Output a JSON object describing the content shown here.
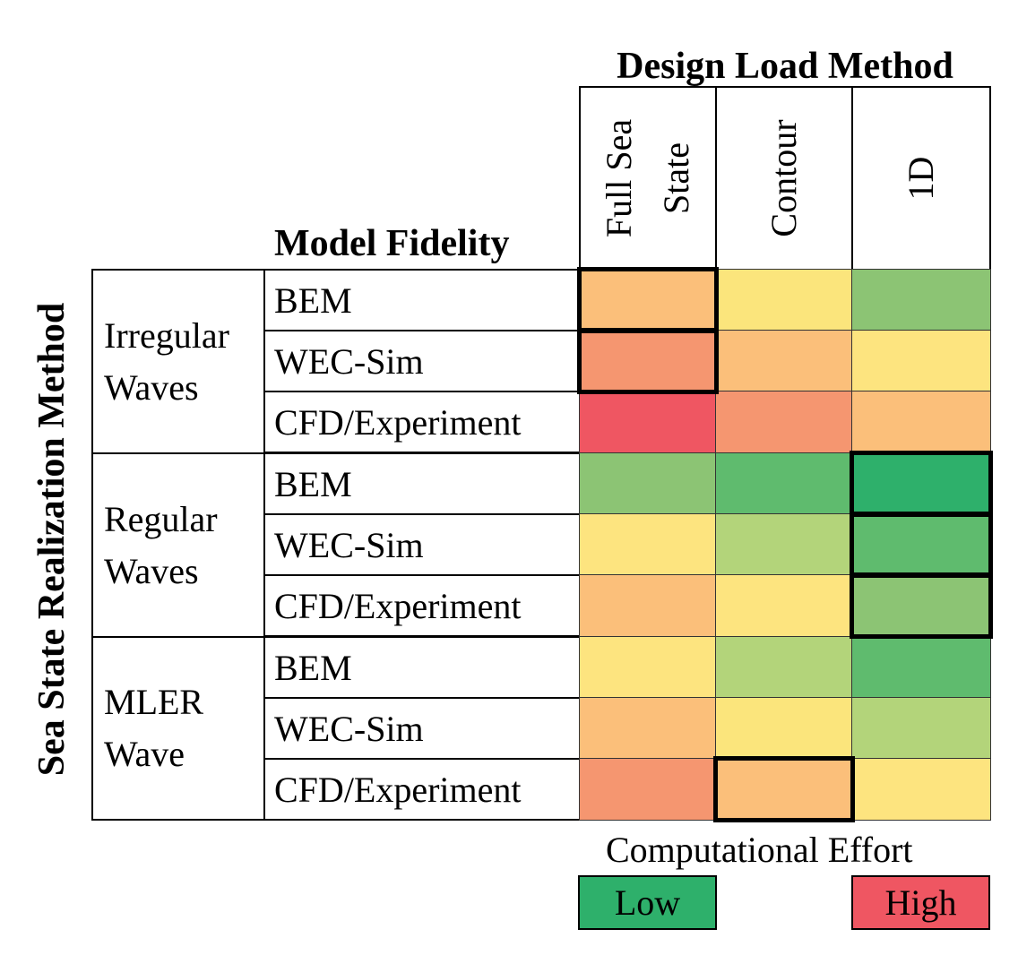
{
  "titles": {
    "design_load_method": "Design Load Method",
    "model_fidelity": "Model Fidelity",
    "sea_state_method": "Sea State Realization Method"
  },
  "columns": [
    {
      "label": "Full Sea State"
    },
    {
      "label": "Contour"
    },
    {
      "label": "1D"
    }
  ],
  "groups": [
    {
      "label": "Irregular Waves"
    },
    {
      "label": "Regular Waves"
    },
    {
      "label": "MLER Wave"
    }
  ],
  "rows": [
    {
      "group": 0,
      "fidelity": "BEM",
      "effort": [
        "med-high",
        "low-med",
        "low"
      ],
      "highlight": [
        true,
        false,
        false
      ]
    },
    {
      "group": 0,
      "fidelity": "WEC-Sim",
      "effort": [
        "high-med",
        "med-high",
        "med"
      ],
      "highlight": [
        true,
        false,
        false
      ]
    },
    {
      "group": 0,
      "fidelity": "CFD/Experiment",
      "effort": [
        "highest",
        "high-med",
        "med-high"
      ],
      "highlight": [
        false,
        false,
        false
      ]
    },
    {
      "group": 1,
      "fidelity": "BEM",
      "effort": [
        "low",
        "lower",
        "lowest"
      ],
      "highlight": [
        false,
        false,
        true
      ]
    },
    {
      "group": 1,
      "fidelity": "WEC-Sim",
      "effort": [
        "med",
        "low-med2",
        "lower"
      ],
      "highlight": [
        false,
        false,
        true
      ]
    },
    {
      "group": 1,
      "fidelity": "CFD/Experiment",
      "effort": [
        "med-high",
        "med",
        "low"
      ],
      "highlight": [
        false,
        false,
        true
      ]
    },
    {
      "group": 2,
      "fidelity": "BEM",
      "effort": [
        "med",
        "low-med2",
        "lower"
      ],
      "highlight": [
        false,
        false,
        false
      ]
    },
    {
      "group": 2,
      "fidelity": "WEC-Sim",
      "effort": [
        "med-high",
        "low-med",
        "low-med2"
      ],
      "highlight": [
        false,
        false,
        false
      ]
    },
    {
      "group": 2,
      "fidelity": "CFD/Experiment",
      "effort": [
        "high-med",
        "med-high",
        "med"
      ],
      "highlight": [
        false,
        true,
        false
      ]
    }
  ],
  "effort_colors": {
    "lowest": "#2eb06b",
    "lower": "#5fbb6e",
    "low": "#8cc474",
    "low-med2": "#b3d47a",
    "low-med": "#fbe57c",
    "med": "#fde47f",
    "med-high": "#fbbf7a",
    "high-med": "#f59670",
    "highest": "#ef5662"
  },
  "legend": {
    "title": "Computational Effort",
    "low_label": "Low",
    "high_label": "High",
    "low_color": "#2eb06b",
    "high_color": "#ef5662"
  }
}
